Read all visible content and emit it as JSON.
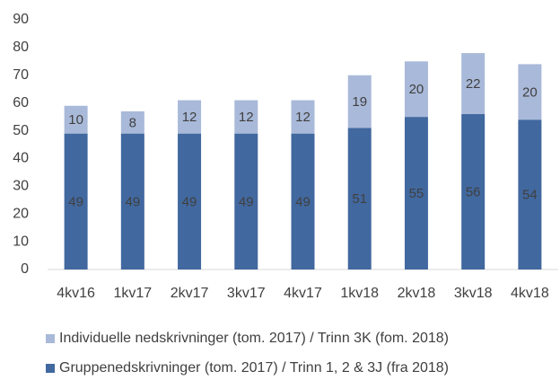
{
  "chart_data": {
    "type": "stacked_bar",
    "categories": [
      "4kv16",
      "1kv17",
      "2kv17",
      "3kv17",
      "4kv17",
      "1kv18",
      "2kv18",
      "3kv18",
      "4kv18"
    ],
    "series": [
      {
        "name": "Gruppenedskrivninger (tom. 2017)  / Trinn 1, 2 & 3J (fra 2018)",
        "color": "#41689f",
        "values": [
          49,
          49,
          49,
          49,
          49,
          51,
          55,
          56,
          54
        ]
      },
      {
        "name": "Individuelle nedskrivninger (tom. 2017) / Trinn 3K (fom. 2018)",
        "color": "#a9b9d9",
        "values": [
          10,
          8,
          12,
          12,
          12,
          19,
          20,
          22,
          20
        ]
      }
    ],
    "ylim": [
      0,
      90
    ],
    "yticks": [
      0,
      10,
      20,
      30,
      40,
      50,
      60,
      70,
      80,
      90
    ],
    "grid": false
  }
}
